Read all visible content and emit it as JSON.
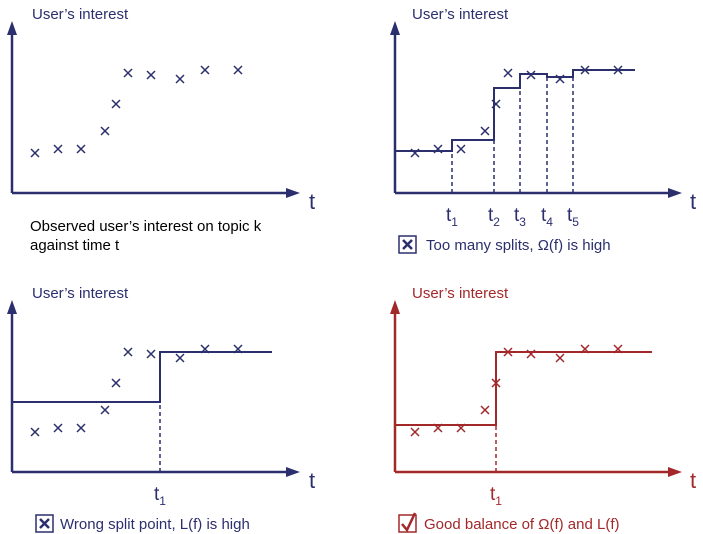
{
  "colors": {
    "bad": "#2b2f6e",
    "good": "#a3282a"
  },
  "panels": [
    {
      "y_label": "User’s interest",
      "x_label": "t",
      "caption_lines": [
        "Observed user’s interest on topic k",
        "against time t"
      ]
    },
    {
      "y_label": "User’s interest",
      "x_label": "t",
      "ticks": [
        "1",
        "2",
        "3",
        "4",
        "5"
      ],
      "tick_letter": "t",
      "caption_icon": "x-box-icon",
      "caption": "Too many splits, Ω(f) is high"
    },
    {
      "y_label": "User’s interest",
      "x_label": "t",
      "ticks": [
        "1"
      ],
      "tick_letter": "t",
      "caption_icon": "x-box-icon",
      "caption": "Wrong split point, L(f) is high"
    },
    {
      "y_label": "User’s interest",
      "x_label": "t",
      "ticks": [
        "1"
      ],
      "tick_letter": "t",
      "caption_icon": "check-box-icon",
      "caption": "Good balance of Ω(f) and L(f)"
    }
  ]
}
